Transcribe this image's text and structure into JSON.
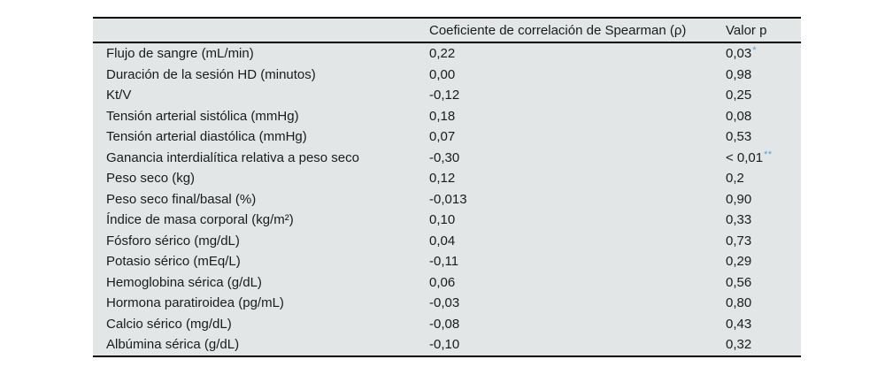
{
  "table": {
    "columns": {
      "variable": "",
      "spearman": "Coeficiente de correlación de Spearman (ρ)",
      "pvalue": "Valor p"
    },
    "rows": [
      {
        "label": "Flujo de sangre (mL/min)",
        "rho": "0,22",
        "p": "0,03",
        "stars": "*"
      },
      {
        "label": "Duración de la sesión HD (minutos)",
        "rho": "0,00",
        "p": "0,98",
        "stars": ""
      },
      {
        "label": "Kt/V",
        "rho": "-0,12",
        "p": "0,25",
        "stars": ""
      },
      {
        "label": "Tensión arterial sistólica (mmHg)",
        "rho": "0,18",
        "p": "0,08",
        "stars": ""
      },
      {
        "label": "Tensión arterial diastólica (mmHg)",
        "rho": "0,07",
        "p": "0,53",
        "stars": ""
      },
      {
        "label": "Ganancia interdialítica relativa a peso seco",
        "rho": "-0,30",
        "p": "< 0,01",
        "stars": "**"
      },
      {
        "label": "Peso seco (kg)",
        "rho": "0,12",
        "p": "0,2",
        "stars": ""
      },
      {
        "label": "Peso seco final/basal (%)",
        "rho": "-0,013",
        "p": "0,90",
        "stars": ""
      },
      {
        "label": "Índice de masa corporal (kg/m²)",
        "rho": "0,10",
        "p": "0,33",
        "stars": ""
      },
      {
        "label": "Fósforo sérico (mg/dL)",
        "rho": "0,04",
        "p": "0,73",
        "stars": ""
      },
      {
        "label": "Potasio sérico (mEq/L)",
        "rho": "-0,11",
        "p": "0,29",
        "stars": ""
      },
      {
        "label": "Hemoglobina sérica (g/dL)",
        "rho": "0,06",
        "p": "0,56",
        "stars": ""
      },
      {
        "label": "Hormona paratiroidea (pg/mL)",
        "rho": "-0,03",
        "p": "0,80",
        "stars": ""
      },
      {
        "label": "Calcio sérico (mg/dL)",
        "rho": "-0,08",
        "p": "0,43",
        "stars": ""
      },
      {
        "label": "Albúmina sérica (g/dL)",
        "rho": "-0,10",
        "p": "0,32",
        "stars": ""
      }
    ],
    "colors": {
      "background": "#e2e6e7",
      "text": "#1b1b1b",
      "star": "#4da7d9",
      "rule": "#000000"
    }
  }
}
